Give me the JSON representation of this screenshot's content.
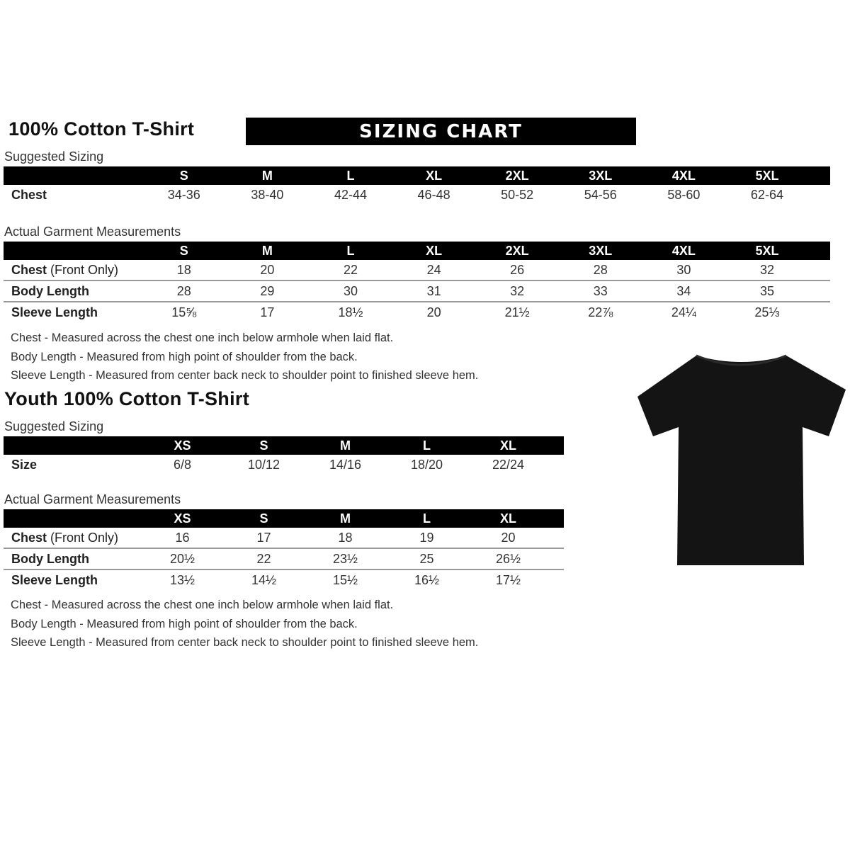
{
  "adult": {
    "title": "100% Cotton T-Shirt",
    "banner": "SIZING CHART",
    "suggested_label": "Suggested Sizing",
    "sizes": [
      "S",
      "M",
      "L",
      "XL",
      "2XL",
      "3XL",
      "4XL",
      "5XL"
    ],
    "suggested_rows": [
      {
        "label": "Chest",
        "values": [
          "34-36",
          "38-40",
          "42-44",
          "46-48",
          "50-52",
          "54-56",
          "58-60",
          "62-64"
        ]
      }
    ],
    "actual_label": "Actual Garment Measurements",
    "actual_rows": [
      {
        "label": "Chest",
        "label_suffix": " (Front Only)",
        "values": [
          "18",
          "20",
          "22",
          "24",
          "26",
          "28",
          "30",
          "32"
        ]
      },
      {
        "label": "Body Length",
        "label_suffix": "",
        "values": [
          "28",
          "29",
          "30",
          "31",
          "32",
          "33",
          "34",
          "35"
        ]
      },
      {
        "label": "Sleeve Length",
        "label_suffix": "",
        "values": [
          "15⅝",
          "17",
          "18½",
          "20",
          "21½",
          "22⅞",
          "24¼",
          "25⅓"
        ]
      }
    ],
    "notes": [
      "Chest - Measured across the chest one inch below armhole when laid flat.",
      "Body Length - Measured from high point of shoulder from the back.",
      "Sleeve Length - Measured from center back neck to shoulder point to finished sleeve hem."
    ]
  },
  "youth": {
    "title": "Youth 100% Cotton T-Shirt",
    "suggested_label": "Suggested Sizing",
    "sizes": [
      "XS",
      "S",
      "M",
      "L",
      "XL"
    ],
    "suggested_rows": [
      {
        "label": "Size",
        "values": [
          "6/8",
          "10/12",
          "14/16",
          "18/20",
          "22/24"
        ]
      }
    ],
    "actual_label": "Actual Garment Measurements",
    "actual_rows": [
      {
        "label": "Chest",
        "label_suffix": " (Front Only)",
        "values": [
          "16",
          "17",
          "18",
          "19",
          "20"
        ]
      },
      {
        "label": "Body Length",
        "label_suffix": "",
        "values": [
          "20½",
          "22",
          "23½",
          "25",
          "26½"
        ]
      },
      {
        "label": "Sleeve Length",
        "label_suffix": "",
        "values": [
          "13½",
          "14½",
          "15½",
          "16½",
          "17½"
        ]
      }
    ],
    "notes": [
      "Chest - Measured across the chest one inch below armhole when laid flat.",
      "Body Length - Measured from high point of shoulder from the back.",
      "Sleeve Length - Measured from center back neck to shoulder point to finished sleeve hem."
    ]
  },
  "image": {
    "icon": "black-tshirt",
    "color": "#141414"
  }
}
